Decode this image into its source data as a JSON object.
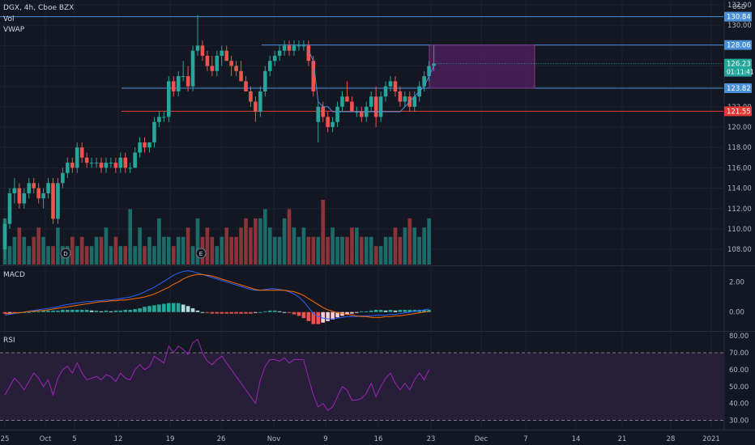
{
  "header": {
    "symbol": "DGX, 4h, Cboe BZX",
    "indicator_vol": "Vol",
    "indicator_vwap": "VWAP",
    "currency": "USD"
  },
  "colors": {
    "bg": "#131722",
    "up": "#26a69a",
    "down": "#ef5350",
    "vol_up": "#1d6b68",
    "vol_down": "#8a3338",
    "hline": "#4a90d9",
    "support_red": "#e53935",
    "zone": "#4a1f5a",
    "macd": "#2962ff",
    "signal": "#ff6d00",
    "rsi": "#9c27b0",
    "rsi_band": "#2a1f3d",
    "grid": "#1e222d"
  },
  "chart_data": [
    {
      "type": "candlestick",
      "pane": "price",
      "ylim": [
        106.5,
        132
      ],
      "price_ticks": [
        "132.00",
        "130.00",
        "128.00",
        "126.00",
        "124.00",
        "122.00",
        "120.00",
        "118.00",
        "116.00",
        "114.00",
        "112.00",
        "110.00",
        "108.00"
      ],
      "x_ticks": [
        "25",
        "Oct",
        "5",
        "12",
        "19",
        "26",
        "Nov",
        "9",
        "16",
        "23",
        "Dec",
        "7",
        "14",
        "21",
        "28",
        "2021"
      ],
      "x_tick_dates": [
        "2020-09-25",
        "2020-10-01",
        "2020-10-05",
        "2020-10-12",
        "2020-10-19",
        "2020-10-26",
        "2020-11-01",
        "2020-11-09",
        "2020-11-16",
        "2020-11-23",
        "2020-12-01",
        "2020-12-07",
        "2020-12-14",
        "2020-12-21",
        "2020-12-28",
        "2021-01-01"
      ],
      "candles": [
        [
          108,
          111,
          107,
          110.5
        ],
        [
          110.5,
          114,
          110,
          113.5
        ],
        [
          113.5,
          115,
          112.5,
          114
        ],
        [
          114,
          114.5,
          112,
          112.5
        ],
        [
          112.5,
          114,
          112,
          113.5
        ],
        [
          113.5,
          115,
          113,
          114.5
        ],
        [
          114.5,
          115,
          113.5,
          114
        ],
        [
          114,
          114.5,
          112.5,
          113
        ],
        [
          113,
          114,
          112,
          113.5
        ],
        [
          113.5,
          115,
          113,
          114.5
        ],
        [
          114.5,
          115,
          110.5,
          111
        ],
        [
          111,
          115,
          110.5,
          114.5
        ],
        [
          114.5,
          116,
          114,
          115.5
        ],
        [
          115.5,
          117,
          115,
          116.5
        ],
        [
          116.5,
          117,
          115.5,
          116
        ],
        [
          116,
          118.5,
          115.5,
          118
        ],
        [
          118,
          118.5,
          116.5,
          117
        ],
        [
          117,
          117.5,
          116,
          116.5
        ],
        [
          116.5,
          117,
          116,
          116.5
        ],
        [
          116.5,
          117,
          116,
          116.5
        ],
        [
          116.5,
          117,
          115.5,
          116
        ],
        [
          116,
          117,
          115.5,
          116.5
        ],
        [
          116.5,
          117,
          116,
          116.5
        ],
        [
          116.5,
          117,
          115.5,
          116
        ],
        [
          116,
          117.5,
          115.5,
          117
        ],
        [
          117,
          117.5,
          115.5,
          116
        ],
        [
          116,
          116.5,
          115.5,
          116
        ],
        [
          116,
          118,
          116,
          117.5
        ],
        [
          117.5,
          119,
          117,
          118.5
        ],
        [
          118.5,
          119,
          117.5,
          118
        ],
        [
          118,
          118.5,
          117.5,
          118.5
        ],
        [
          118.5,
          121,
          118,
          120.5
        ],
        [
          120.5,
          121.5,
          120,
          121
        ],
        [
          121,
          121.5,
          120.5,
          121
        ],
        [
          121,
          125,
          120.5,
          124.5
        ],
        [
          124.5,
          125,
          123,
          123.5
        ],
        [
          123.5,
          125.5,
          123,
          125
        ],
        [
          125,
          126.5,
          124.5,
          125
        ],
        [
          125,
          126,
          123.5,
          124
        ],
        [
          124,
          128,
          123.5,
          127.5
        ],
        [
          127.5,
          131,
          127,
          128
        ],
        [
          128,
          128.5,
          126.5,
          127
        ],
        [
          127,
          127.5,
          125.5,
          126
        ],
        [
          126,
          127,
          125,
          125.5
        ],
        [
          125.5,
          127.5,
          125,
          127
        ],
        [
          127,
          128,
          126,
          127.5
        ],
        [
          127.5,
          128,
          126.5,
          126.5
        ],
        [
          126.5,
          127,
          125,
          126
        ],
        [
          126,
          126.5,
          125,
          125.5
        ],
        [
          125.5,
          126.5,
          124.5,
          124.5
        ],
        [
          124.5,
          125,
          123.5,
          123.5
        ],
        [
          123.5,
          124,
          122,
          122.5
        ],
        [
          122.5,
          123,
          120.5,
          121.5
        ],
        [
          121.5,
          124,
          121,
          123.5
        ],
        [
          123.5,
          126,
          123,
          125.5
        ],
        [
          125.5,
          127,
          125,
          126.5
        ],
        [
          126.5,
          127.5,
          126,
          127
        ],
        [
          127,
          128,
          126.5,
          127.5
        ],
        [
          127.5,
          128.5,
          127,
          128
        ],
        [
          128,
          128.5,
          127,
          127.5
        ],
        [
          127.5,
          128.5,
          127,
          128
        ],
        [
          128,
          128.5,
          127.5,
          128
        ],
        [
          128,
          128.5,
          127.5,
          128
        ],
        [
          128,
          128.5,
          126,
          126.5
        ],
        [
          126.5,
          127,
          123,
          123.5
        ],
        [
          120.5,
          122.5,
          118.5,
          122
        ],
        [
          122,
          122.5,
          120.5,
          121
        ],
        [
          121,
          121.5,
          119.5,
          120
        ],
        [
          120,
          121,
          119.5,
          120.5
        ],
        [
          120.5,
          122.5,
          120,
          122
        ],
        [
          122,
          123.5,
          121.5,
          123
        ],
        [
          123,
          124.5,
          122.5,
          122.5
        ],
        [
          122.5,
          123,
          121.5,
          121.5
        ],
        [
          121.5,
          122,
          121,
          121.5
        ],
        [
          121.5,
          122,
          120.5,
          121
        ],
        [
          121,
          122.5,
          120.5,
          122
        ],
        [
          122,
          123.5,
          121.5,
          123
        ],
        [
          123,
          124,
          120,
          121
        ],
        [
          121,
          123.5,
          120.5,
          123
        ],
        [
          123,
          124.5,
          122.5,
          124
        ],
        [
          124,
          125,
          123.5,
          124.5
        ],
        [
          124.5,
          125,
          123,
          123.5
        ],
        [
          123.5,
          124,
          122,
          122.5
        ],
        [
          122.5,
          123.5,
          122,
          123
        ],
        [
          123,
          123.5,
          121.5,
          122
        ],
        [
          122,
          123.5,
          121.5,
          123
        ],
        [
          123,
          124.5,
          122.5,
          124
        ],
        [
          124,
          125.5,
          123.5,
          125
        ],
        [
          125,
          126.5,
          124.5,
          126
        ],
        [
          126,
          128,
          125.5,
          126.23
        ]
      ],
      "volume": [
        5,
        2,
        3,
        4,
        3,
        2,
        3,
        4,
        3,
        2,
        2,
        4,
        2,
        2,
        3,
        2,
        3,
        2,
        2,
        3,
        3,
        4,
        2,
        3,
        2,
        2,
        6,
        2,
        4,
        2,
        3,
        2,
        5,
        3,
        3,
        2,
        3,
        3,
        4,
        2,
        5,
        3,
        4,
        3,
        2,
        3,
        4,
        3,
        3,
        4,
        5,
        4,
        5,
        5,
        6,
        4,
        3,
        3,
        5,
        6,
        4,
        3,
        4,
        3,
        3,
        3,
        7,
        3,
        4,
        3,
        3,
        3,
        4,
        4,
        3,
        3,
        3,
        2,
        2,
        3,
        3,
        4,
        3,
        4,
        5,
        4,
        3,
        4,
        5
      ],
      "vwap_line": [
        null,
        null,
        null,
        null,
        null,
        null,
        null,
        null,
        null,
        null,
        null,
        null,
        null,
        null,
        null,
        null,
        null,
        null,
        null,
        null,
        null,
        null,
        null,
        null,
        null,
        null,
        null,
        null,
        null,
        null,
        null,
        null,
        null,
        null,
        null,
        null,
        null,
        null,
        null,
        null,
        null,
        null,
        null,
        null,
        null,
        null,
        null,
        null,
        null,
        null,
        null,
        null,
        null,
        null,
        null,
        null,
        null,
        null,
        null,
        null,
        null,
        null,
        null,
        127.5,
        126.5,
        122.5,
        122,
        122,
        121.5,
        121.5,
        121.5,
        121.5,
        121.5,
        121.5,
        121.5,
        121.5,
        121.5,
        121.5,
        121.5,
        121.5,
        121.5,
        121.5,
        121.5,
        122,
        122.5,
        123,
        123.5,
        124,
        125,
        126
      ],
      "levels": [
        {
          "price": 130.84,
          "label": "130.84",
          "role": "resistance"
        },
        {
          "price": 128.06,
          "label": "128.06",
          "role": "zone-top"
        },
        {
          "price": 123.82,
          "label": "123.82",
          "role": "zone-bottom"
        },
        {
          "price": 121.55,
          "label": "121.55",
          "role": "support"
        }
      ],
      "last_price": {
        "value": 126.23,
        "label": "126.23",
        "countdown": "01:11:41"
      },
      "markers": [
        "D",
        "E"
      ]
    },
    {
      "type": "line",
      "pane": "MACD",
      "title": "MACD",
      "ylim": [
        -1.2,
        3.0
      ],
      "ticks": [
        "2.00",
        "0.00"
      ],
      "series": [
        {
          "role": "macd",
          "values": [
            -0.2,
            -0.15,
            -0.1,
            -0.05,
            0,
            0.05,
            0.1,
            0.15,
            0.2,
            0.25,
            0.3,
            0.35,
            0.45,
            0.5,
            0.55,
            0.6,
            0.65,
            0.7,
            0.7,
            0.75,
            0.75,
            0.8,
            0.8,
            0.85,
            0.9,
            0.95,
            1.0,
            1.1,
            1.2,
            1.35,
            1.5,
            1.65,
            1.85,
            2.05,
            2.25,
            2.45,
            2.6,
            2.7,
            2.75,
            2.7,
            2.6,
            2.5,
            2.4,
            2.3,
            2.2,
            2.1,
            2.0,
            1.9,
            1.8,
            1.7,
            1.6,
            1.5,
            1.45,
            1.45,
            1.5,
            1.55,
            1.55,
            1.5,
            1.45,
            1.35,
            1.2,
            1.0,
            0.7,
            0.3,
            -0.1,
            -0.3,
            -0.4,
            -0.45,
            -0.45,
            -0.4,
            -0.35,
            -0.3,
            -0.3,
            -0.3,
            -0.25,
            -0.25,
            -0.25,
            -0.2,
            -0.2,
            -0.2,
            -0.15,
            -0.15,
            -0.1,
            -0.05,
            0.0,
            0.05,
            0.1,
            0.15,
            0.2
          ]
        },
        {
          "role": "signal",
          "values": [
            -0.1,
            -0.1,
            -0.05,
            -0.05,
            0,
            0.05,
            0.05,
            0.1,
            0.1,
            0.15,
            0.2,
            0.25,
            0.3,
            0.35,
            0.4,
            0.45,
            0.5,
            0.55,
            0.6,
            0.65,
            0.7,
            0.7,
            0.75,
            0.75,
            0.8,
            0.8,
            0.85,
            0.9,
            0.95,
            1.0,
            1.1,
            1.2,
            1.35,
            1.5,
            1.65,
            1.85,
            2.0,
            2.2,
            2.35,
            2.45,
            2.5,
            2.5,
            2.45,
            2.4,
            2.3,
            2.2,
            2.1,
            2.0,
            1.9,
            1.8,
            1.7,
            1.6,
            1.5,
            1.45,
            1.45,
            1.45,
            1.45,
            1.45,
            1.45,
            1.4,
            1.35,
            1.25,
            1.1,
            0.9,
            0.7,
            0.5,
            0.3,
            0.15,
            0.05,
            -0.05,
            -0.1,
            -0.15,
            -0.2,
            -0.25,
            -0.3,
            -0.3,
            -0.35,
            -0.35,
            -0.35,
            -0.3,
            -0.3,
            -0.25,
            -0.25,
            -0.2,
            -0.15,
            -0.1,
            -0.05,
            0.0,
            0.05
          ]
        },
        {
          "role": "histogram",
          "values": [
            -0.1,
            -0.05,
            -0.05,
            0,
            0,
            0,
            0.05,
            0.05,
            0.1,
            0.1,
            0.1,
            0.1,
            0.15,
            0.15,
            0.15,
            0.15,
            0.15,
            0.15,
            0.1,
            0.1,
            0.05,
            0.1,
            0.05,
            0.1,
            0.1,
            0.15,
            0.15,
            0.2,
            0.25,
            0.35,
            0.4,
            0.45,
            0.5,
            0.55,
            0.6,
            0.6,
            0.6,
            0.5,
            0.4,
            0.25,
            0.1,
            0,
            -0.05,
            -0.1,
            -0.1,
            -0.1,
            -0.1,
            -0.1,
            -0.1,
            -0.1,
            -0.1,
            -0.1,
            -0.05,
            0,
            0.05,
            0.1,
            0.1,
            0.05,
            0,
            -0.05,
            -0.15,
            -0.25,
            -0.4,
            -0.6,
            -0.8,
            -0.8,
            -0.7,
            -0.6,
            -0.5,
            -0.35,
            -0.25,
            -0.15,
            -0.1,
            -0.05,
            0.05,
            0.05,
            0.1,
            0.15,
            0.15,
            0.1,
            0.15,
            0.1,
            0.15,
            0.15,
            0.15,
            0.15,
            0.15,
            0.15,
            0.15
          ]
        }
      ]
    },
    {
      "type": "line",
      "pane": "RSI",
      "title": "RSI",
      "ylim": [
        25,
        82
      ],
      "ticks": [
        "80.00",
        "70.00",
        "60.00",
        "50.00",
        "40.00",
        "30.00"
      ],
      "band": [
        30,
        70
      ],
      "series": [
        {
          "role": "rsi",
          "values": [
            45,
            50,
            55,
            52,
            48,
            53,
            58,
            55,
            50,
            54,
            45,
            55,
            60,
            62,
            58,
            64,
            58,
            54,
            55,
            56,
            54,
            57,
            56,
            53,
            58,
            55,
            54,
            60,
            63,
            60,
            62,
            68,
            66,
            64,
            74,
            70,
            74,
            72,
            69,
            76,
            78,
            70,
            65,
            63,
            66,
            68,
            64,
            60,
            56,
            52,
            48,
            44,
            40,
            54,
            62,
            66,
            66,
            65,
            67,
            64,
            66,
            66,
            66,
            55,
            45,
            38,
            40,
            36,
            38,
            44,
            50,
            48,
            42,
            42,
            43,
            46,
            52,
            44,
            50,
            55,
            58,
            52,
            48,
            52,
            48,
            54,
            58,
            54,
            60
          ]
        }
      ]
    }
  ]
}
